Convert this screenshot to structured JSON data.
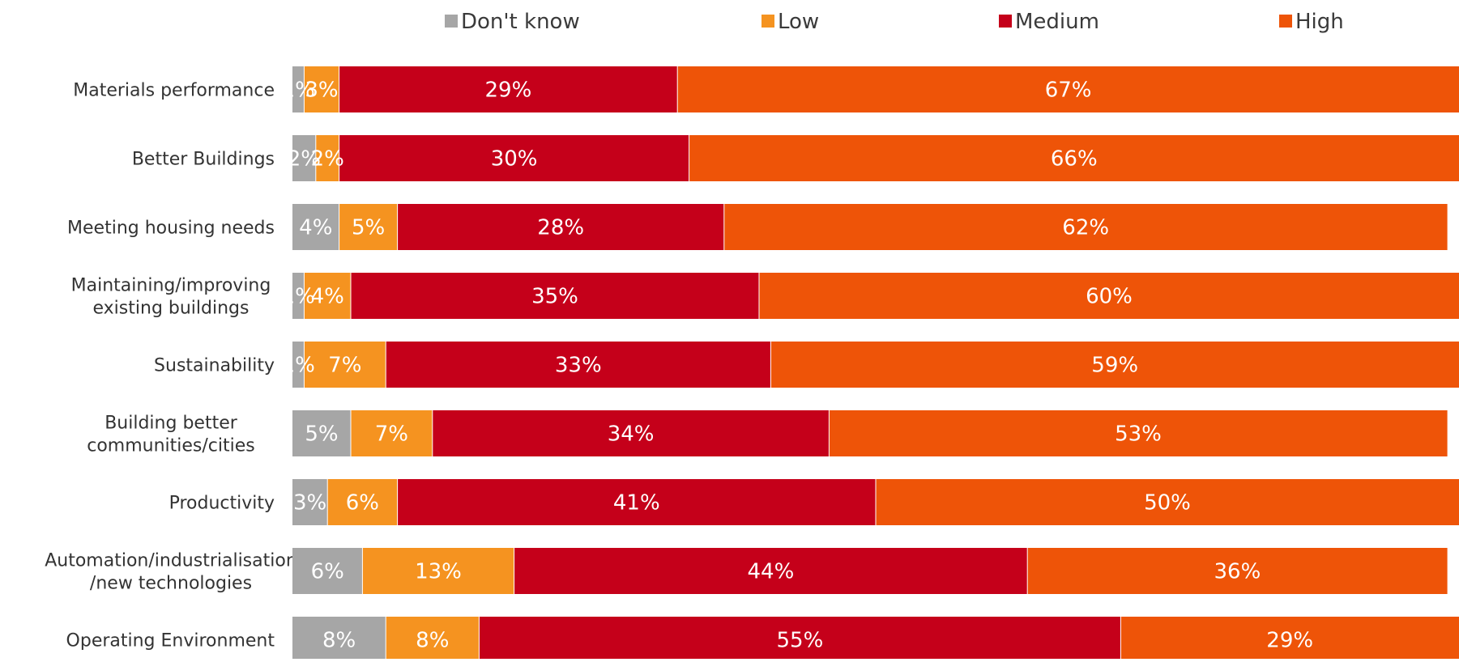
{
  "chart_data": {
    "type": "bar",
    "orientation": "horizontal",
    "stacked": true,
    "legend_position": "top",
    "grid": false,
    "categories": [
      [
        "Materials performance"
      ],
      [
        "Better Buildings"
      ],
      [
        "Meeting housing needs"
      ],
      [
        "Maintaining/improving",
        "existing buildings"
      ],
      [
        "Sustainability"
      ],
      [
        "Building better",
        "communities/cities"
      ],
      [
        "Productivity"
      ],
      [
        "Automation/industrialisation",
        "/new technologies"
      ],
      [
        "Operating Environment"
      ]
    ],
    "series": [
      {
        "name": "Don't know",
        "color": "#a6a6a6",
        "values": [
          1,
          2,
          4,
          1,
          1,
          5,
          3,
          6,
          8
        ],
        "labels": [
          "1%",
          "2%",
          "4%",
          "1%",
          "1%",
          "5%",
          "3%",
          "6%",
          "8%"
        ]
      },
      {
        "name": "Low",
        "color": "#f59320",
        "values": [
          3,
          2,
          5,
          4,
          7,
          7,
          6,
          13,
          8
        ],
        "labels": [
          "3%",
          "2%",
          "5%",
          "4%",
          "7%",
          "7%",
          "6%",
          "13%",
          "8%"
        ]
      },
      {
        "name": "Medium",
        "color": "#c5001a",
        "values": [
          29,
          30,
          28,
          35,
          33,
          34,
          41,
          44,
          55
        ],
        "labels": [
          "29%",
          "30%",
          "28%",
          "35%",
          "33%",
          "34%",
          "41%",
          "44%",
          "55%"
        ]
      },
      {
        "name": "High",
        "color": "#ee5408",
        "values": [
          67,
          66,
          62,
          60,
          59,
          53,
          50,
          36,
          29
        ],
        "labels": [
          "67%",
          "66%",
          "62%",
          "60%",
          "59%",
          "53%",
          "50%",
          "36%",
          "29%"
        ]
      }
    ]
  }
}
